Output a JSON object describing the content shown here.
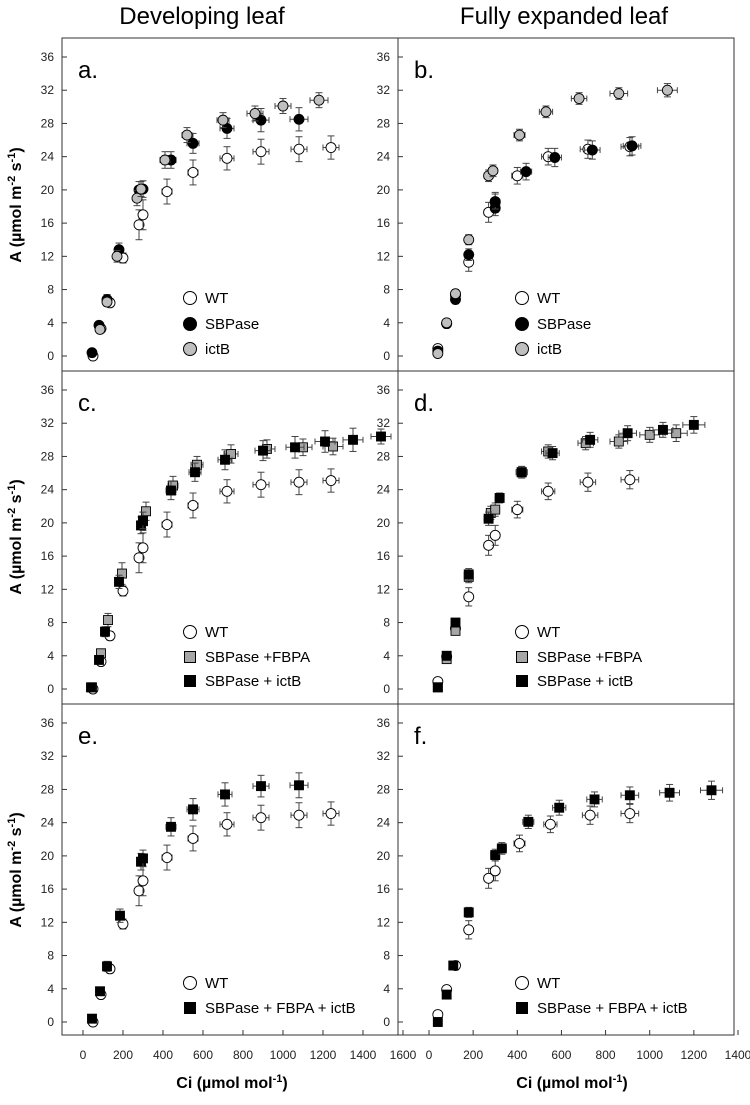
{
  "column_titles": [
    "Developing leaf",
    "Fully expanded leaf"
  ],
  "y_axis_label": {
    "main": "A (µmol m",
    "sup1": "-2",
    "mid": " s",
    "sup2": "-1",
    "end": ")"
  },
  "x_axis_label": {
    "main": "Ci  (µmol mol",
    "sup": "-1",
    "end": ")"
  },
  "series_styles": {
    "WT": {
      "shape": "circle",
      "fill": "#ffffff"
    },
    "SBPase": {
      "shape": "circle",
      "fill": "#000000"
    },
    "ictB": {
      "shape": "circle",
      "fill": "#bfbfbf"
    },
    "SBPase +FBPA": {
      "shape": "square",
      "fill": "#a6a6a6"
    },
    "SBPase + ictB": {
      "shape": "square",
      "fill": "#000000"
    },
    "SBPase  + FBPA + ictB": {
      "shape": "square",
      "fill": "#000000"
    }
  },
  "chart_data": [
    {
      "type": "scatter",
      "panel": "a.",
      "column": 0,
      "row": 0,
      "xlim": [
        0,
        1600
      ],
      "xticks": [
        0,
        200,
        400,
        600,
        800,
        1000,
        1200,
        1400,
        1600
      ],
      "ylim": [
        0,
        36
      ],
      "yticks": [
        0,
        4,
        8,
        12,
        16,
        20,
        24,
        28,
        32,
        36
      ],
      "legend": [
        "WT",
        "SBPase",
        "ictB"
      ],
      "series": [
        {
          "name": "WT",
          "x": [
            50,
            90,
            135,
            200,
            280,
            300,
            420,
            550,
            720,
            890,
            1080,
            1240
          ],
          "y": [
            0,
            3.3,
            6.4,
            11.8,
            15.8,
            17.0,
            19.8,
            22.1,
            23.8,
            24.6,
            24.9,
            25.1
          ],
          "yerr": [
            0.3,
            0.4,
            0.5,
            0.6,
            1.8,
            1.8,
            1.5,
            1.5,
            1.4,
            1.5,
            1.5,
            1.4
          ],
          "xerr": [
            5,
            8,
            10,
            15,
            20,
            20,
            25,
            25,
            35,
            40,
            40,
            40
          ]
        },
        {
          "name": "SBPase",
          "x": [
            45,
            80,
            120,
            180,
            280,
            300,
            440,
            550,
            720,
            890,
            1080
          ],
          "y": [
            0.4,
            3.7,
            6.8,
            12.8,
            20.0,
            20.1,
            23.6,
            25.6,
            27.4,
            28.4,
            28.5
          ],
          "yerr": [
            0.3,
            0.4,
            0.6,
            0.8,
            1.0,
            1.0,
            1.0,
            1.2,
            1.2,
            1.4,
            1.4
          ],
          "xerr": [
            5,
            8,
            10,
            15,
            20,
            20,
            25,
            30,
            35,
            40,
            45
          ]
        },
        {
          "name": "ictB",
          "x": [
            85,
            120,
            170,
            270,
            290,
            410,
            520,
            700,
            860,
            1000,
            1180
          ],
          "y": [
            3.2,
            6.5,
            12.0,
            19.0,
            20.1,
            23.6,
            26.6,
            28.4,
            29.2,
            30.1,
            30.8
          ],
          "yerr": [
            0.4,
            0.5,
            0.7,
            0.9,
            0.9,
            1.0,
            0.9,
            0.9,
            0.9,
            0.9,
            0.9
          ],
          "xerr": [
            8,
            10,
            15,
            20,
            20,
            25,
            25,
            30,
            40,
            40,
            45
          ]
        }
      ]
    },
    {
      "type": "scatter",
      "panel": "b.",
      "column": 1,
      "row": 0,
      "xlim": [
        0,
        1400
      ],
      "xticks": [
        0,
        200,
        400,
        600,
        800,
        1000,
        1200,
        1400
      ],
      "ylim": [
        0,
        36
      ],
      "yticks": [
        0,
        4,
        8,
        12,
        16,
        20,
        24,
        28,
        32,
        36
      ],
      "legend": [
        "WT",
        "SBPase",
        "ictB"
      ],
      "series": [
        {
          "name": "WT",
          "x": [
            40,
            80,
            120,
            180,
            270,
            300,
            400,
            540,
            720,
            910
          ],
          "y": [
            0.9,
            3.9,
            7.3,
            11.3,
            17.3,
            18.5,
            21.7,
            24.0,
            24.9,
            25.2
          ],
          "yerr": [
            0.3,
            0.4,
            0.5,
            1.1,
            1.2,
            1.2,
            1.0,
            1.0,
            1.1,
            1.1
          ],
          "xerr": [
            5,
            8,
            10,
            15,
            20,
            20,
            25,
            30,
            35,
            40
          ]
        },
        {
          "name": "SBPase",
          "x": [
            40,
            80,
            120,
            180,
            300,
            300,
            440,
            570,
            740,
            920
          ],
          "y": [
            0.6,
            3.9,
            6.8,
            12.2,
            17.8,
            18.6,
            22.2,
            23.9,
            24.8,
            25.3
          ],
          "yerr": [
            0.3,
            0.4,
            0.5,
            0.7,
            0.9,
            0.9,
            1.0,
            1.1,
            1.1,
            1.1
          ],
          "xerr": [
            5,
            8,
            10,
            15,
            20,
            20,
            25,
            30,
            35,
            40
          ]
        },
        {
          "name": "ictB",
          "x": [
            40,
            80,
            120,
            180,
            270,
            290,
            410,
            530,
            680,
            860,
            1080
          ],
          "y": [
            0.3,
            4.0,
            7.5,
            14.0,
            21.7,
            22.3,
            26.6,
            29.4,
            31.0,
            31.6,
            32.0
          ],
          "yerr": [
            0.3,
            0.4,
            0.5,
            0.6,
            0.7,
            0.7,
            0.7,
            0.7,
            0.7,
            0.7,
            0.8
          ],
          "xerr": [
            5,
            8,
            10,
            15,
            20,
            20,
            25,
            30,
            35,
            40,
            45
          ]
        }
      ]
    },
    {
      "type": "scatter",
      "panel": "c.",
      "column": 0,
      "row": 1,
      "xlim": [
        0,
        1600
      ],
      "xticks": [
        0,
        200,
        400,
        600,
        800,
        1000,
        1200,
        1400,
        1600
      ],
      "ylim": [
        0,
        36
      ],
      "yticks": [
        0,
        4,
        8,
        12,
        16,
        20,
        24,
        28,
        32,
        36
      ],
      "legend": [
        "WT",
        "SBPase +FBPA",
        "SBPase + ictB"
      ],
      "series": [
        {
          "name": "WT",
          "x": [
            50,
            90,
            135,
            200,
            280,
            300,
            420,
            550,
            720,
            890,
            1080,
            1240
          ],
          "y": [
            0,
            3.3,
            6.4,
            11.8,
            15.8,
            17.0,
            19.8,
            22.1,
            23.8,
            24.6,
            24.9,
            25.1
          ],
          "yerr": [
            0.3,
            0.4,
            0.5,
            0.6,
            1.8,
            1.8,
            1.5,
            1.5,
            1.4,
            1.5,
            1.5,
            1.4
          ],
          "xerr": [
            5,
            8,
            10,
            15,
            20,
            20,
            25,
            25,
            35,
            40,
            40,
            40
          ]
        },
        {
          "name": "SBPase +FBPA",
          "x": [
            45,
            90,
            125,
            195,
            300,
            315,
            450,
            570,
            740,
            920,
            1100,
            1250
          ],
          "y": [
            0.2,
            4.3,
            8.3,
            13.9,
            20.2,
            21.4,
            24.5,
            27.0,
            28.3,
            28.9,
            29.1,
            29.2
          ],
          "yerr": [
            0.3,
            0.5,
            0.8,
            1.3,
            1.1,
            1.1,
            1.1,
            1.0,
            1.1,
            1.1,
            1.0,
            1.0
          ],
          "xerr": [
            5,
            8,
            10,
            15,
            20,
            20,
            25,
            30,
            35,
            40,
            45,
            50
          ]
        },
        {
          "name": "SBPase + ictB",
          "x": [
            40,
            80,
            110,
            180,
            290,
            300,
            440,
            560,
            710,
            900,
            1060,
            1210,
            1350,
            1490
          ],
          "y": [
            0.2,
            3.5,
            6.9,
            12.9,
            19.7,
            20.3,
            23.9,
            26.1,
            27.6,
            28.7,
            29.1,
            29.8,
            30.0,
            30.4
          ],
          "yerr": [
            0.3,
            0.4,
            0.6,
            0.8,
            1.0,
            1.0,
            1.1,
            1.1,
            1.2,
            1.2,
            1.3,
            1.3,
            1.4,
            0.9
          ],
          "xerr": [
            5,
            8,
            10,
            15,
            20,
            20,
            25,
            30,
            35,
            40,
            45,
            50,
            50,
            50
          ]
        }
      ]
    },
    {
      "type": "scatter",
      "panel": "d.",
      "column": 1,
      "row": 1,
      "xlim": [
        0,
        1400
      ],
      "xticks": [
        0,
        200,
        400,
        600,
        800,
        1000,
        1200,
        1400
      ],
      "ylim": [
        0,
        36
      ],
      "yticks": [
        0,
        4,
        8,
        12,
        16,
        20,
        24,
        28,
        32,
        36
      ],
      "legend": [
        "WT",
        "SBPase +FBPA",
        "SBPase + ictB"
      ],
      "series": [
        {
          "name": "WT",
          "x": [
            40,
            80,
            120,
            180,
            270,
            300,
            400,
            540,
            720,
            910
          ],
          "y": [
            0.9,
            3.9,
            7.3,
            11.1,
            17.3,
            18.5,
            21.6,
            23.8,
            24.9,
            25.2
          ],
          "yerr": [
            0.3,
            0.4,
            0.5,
            1.1,
            1.2,
            1.2,
            1.0,
            1.0,
            1.1,
            1.1
          ],
          "xerr": [
            5,
            8,
            10,
            15,
            20,
            20,
            25,
            30,
            35,
            40
          ]
        },
        {
          "name": "SBPase +FBPA",
          "x": [
            40,
            80,
            120,
            180,
            280,
            300,
            420,
            540,
            710,
            860,
            1000,
            1120
          ],
          "y": [
            0.2,
            3.6,
            7.0,
            13.5,
            21.2,
            21.6,
            26.1,
            28.6,
            29.6,
            29.8,
            30.6,
            30.8
          ],
          "yerr": [
            0.3,
            0.4,
            0.5,
            0.7,
            0.8,
            0.8,
            0.7,
            0.8,
            0.8,
            0.8,
            0.9,
            1.0
          ],
          "xerr": [
            5,
            8,
            10,
            15,
            20,
            20,
            25,
            30,
            35,
            40,
            45,
            50
          ]
        },
        {
          "name": "SBPase + ictB",
          "x": [
            40,
            80,
            120,
            180,
            270,
            320,
            420,
            560,
            730,
            900,
            1060,
            1200
          ],
          "y": [
            0.2,
            4.0,
            8.0,
            13.8,
            20.5,
            23.0,
            26.1,
            28.4,
            30.0,
            30.8,
            31.2,
            31.8
          ],
          "yerr": [
            0.3,
            0.4,
            0.5,
            0.7,
            0.8,
            0.6,
            0.7,
            0.8,
            0.9,
            0.9,
            0.9,
            1.0
          ],
          "xerr": [
            5,
            8,
            10,
            15,
            20,
            20,
            25,
            30,
            35,
            40,
            45,
            50
          ]
        }
      ]
    },
    {
      "type": "scatter",
      "panel": "e.",
      "column": 0,
      "row": 2,
      "xlim": [
        0,
        1600
      ],
      "xticks": [
        0,
        200,
        400,
        600,
        800,
        1000,
        1200,
        1400,
        1600
      ],
      "ylim": [
        0,
        36
      ],
      "yticks": [
        0,
        4,
        8,
        12,
        16,
        20,
        24,
        28,
        32,
        36
      ],
      "legend": [
        "WT",
        "SBPase  + FBPA + ictB"
      ],
      "series": [
        {
          "name": "WT",
          "x": [
            50,
            90,
            135,
            200,
            280,
            300,
            420,
            550,
            720,
            890,
            1080,
            1240
          ],
          "y": [
            0,
            3.3,
            6.4,
            11.8,
            15.8,
            17.0,
            19.8,
            22.1,
            23.8,
            24.6,
            24.9,
            25.1
          ],
          "yerr": [
            0.3,
            0.4,
            0.5,
            0.6,
            1.8,
            1.8,
            1.5,
            1.5,
            1.4,
            1.5,
            1.5,
            1.4
          ],
          "xerr": [
            5,
            8,
            10,
            15,
            20,
            20,
            25,
            25,
            35,
            40,
            40,
            40
          ]
        },
        {
          "name": "SBPase  + FBPA + ictB",
          "x": [
            45,
            85,
            120,
            185,
            290,
            300,
            440,
            550,
            710,
            890,
            1080
          ],
          "y": [
            0.4,
            3.7,
            6.7,
            12.8,
            19.3,
            19.7,
            23.5,
            25.6,
            27.4,
            28.4,
            28.5
          ],
          "yerr": [
            0.3,
            0.4,
            0.6,
            0.8,
            1.0,
            1.0,
            1.1,
            1.3,
            1.4,
            1.3,
            1.5
          ],
          "xerr": [
            5,
            8,
            10,
            15,
            20,
            20,
            25,
            30,
            35,
            40,
            45
          ]
        }
      ]
    },
    {
      "type": "scatter",
      "panel": "f.",
      "column": 1,
      "row": 2,
      "xlim": [
        0,
        1400
      ],
      "xticks": [
        0,
        200,
        400,
        600,
        800,
        1000,
        1200,
        1400
      ],
      "ylim": [
        0,
        36
      ],
      "yticks": [
        0,
        4,
        8,
        12,
        16,
        20,
        24,
        28,
        32,
        36
      ],
      "legend": [
        "WT",
        "SBPase  + FBPA + ictB"
      ],
      "series": [
        {
          "name": "WT",
          "x": [
            40,
            80,
            120,
            180,
            270,
            300,
            410,
            550,
            730,
            910
          ],
          "y": [
            0.9,
            3.9,
            6.8,
            11.1,
            17.3,
            18.2,
            21.5,
            23.8,
            24.9,
            25.1
          ],
          "yerr": [
            0.3,
            0.4,
            0.5,
            1.1,
            1.2,
            1.2,
            1.0,
            1.0,
            1.1,
            1.1
          ],
          "xerr": [
            5,
            8,
            10,
            15,
            20,
            20,
            25,
            30,
            35,
            40
          ]
        },
        {
          "name": "SBPase  + FBPA + ictB",
          "x": [
            40,
            80,
            110,
            180,
            300,
            330,
            450,
            590,
            750,
            910,
            1090,
            1280
          ],
          "y": [
            0,
            3.3,
            6.8,
            13.2,
            20.1,
            20.9,
            24.1,
            25.8,
            26.8,
            27.3,
            27.6,
            27.9
          ],
          "yerr": [
            0.3,
            0.4,
            0.5,
            0.6,
            0.7,
            0.7,
            0.8,
            0.9,
            0.9,
            1.0,
            1.0,
            1.1
          ],
          "xerr": [
            5,
            8,
            10,
            15,
            20,
            20,
            25,
            30,
            35,
            40,
            45,
            50
          ]
        }
      ]
    }
  ]
}
